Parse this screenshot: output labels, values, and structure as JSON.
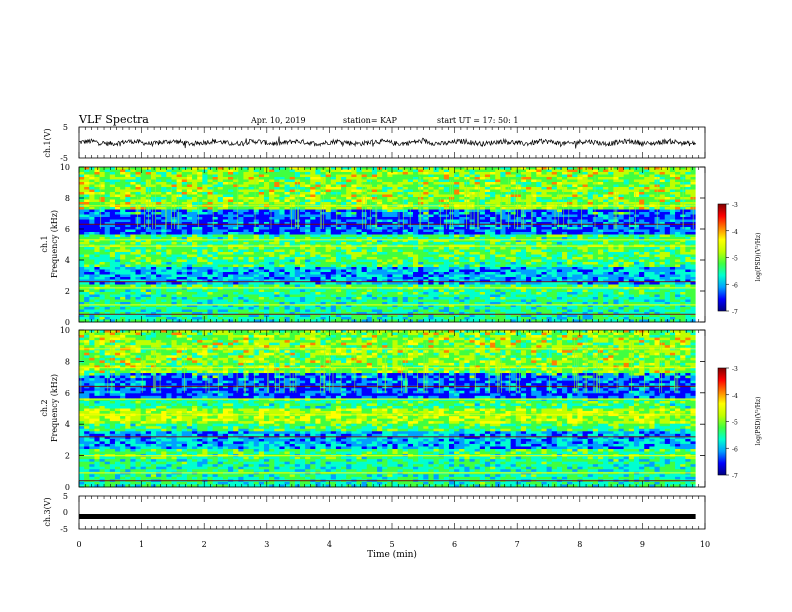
{
  "header": {
    "title": "VLF Spectra",
    "date": "Apr. 10, 2019",
    "station": "station= KAP",
    "start": "start  UT  =   17: 50: 1"
  },
  "chart_data": [
    {
      "type": "line",
      "ylabel": "ch.1(V)",
      "ylim": [
        -5,
        5
      ],
      "yticks": [
        "5",
        "-5"
      ],
      "xlim": [
        0,
        10
      ],
      "description_values": {
        "mean": 0,
        "amplitude": 1.5
      }
    },
    {
      "type": "heatmap",
      "ylabel_top": "ch.1",
      "ylabel": "Frequency (kHz)",
      "ylim": [
        0,
        10
      ],
      "yticks": [
        "0",
        "2",
        "4",
        "6",
        "8",
        "10"
      ],
      "xlim": [
        0,
        10
      ],
      "colorbar": {
        "label": "log(PSD)(V²/Hz)",
        "range": [
          -7,
          -3
        ],
        "ticks": [
          "-3",
          "-4",
          "-5",
          "-6",
          "-7"
        ]
      }
    },
    {
      "type": "heatmap",
      "ylabel_top": "ch.2",
      "ylabel": "Frequency (kHz)",
      "ylim": [
        0,
        10
      ],
      "yticks": [
        "0",
        "2",
        "4",
        "6",
        "8",
        "10"
      ],
      "xlim": [
        0,
        10
      ],
      "colorbar": {
        "label": "log(PSD)(V²/Hz)",
        "range": [
          -7,
          -3
        ],
        "ticks": [
          "-3",
          "-4",
          "-5",
          "-6",
          "-7"
        ]
      }
    },
    {
      "type": "line",
      "ylabel": "ch.3(V)",
      "ylim": [
        -5,
        5
      ],
      "yticks": [
        "5",
        "0",
        "-5"
      ],
      "xlim": [
        0,
        10
      ],
      "description_values": {
        "constant": -1.2
      }
    }
  ],
  "xaxis": {
    "label": "Time (min)",
    "ticks": [
      "0",
      "1",
      "2",
      "3",
      "4",
      "5",
      "6",
      "7",
      "8",
      "9",
      "10"
    ],
    "data_end": 9.85
  },
  "colors": {
    "cmap": [
      "#000080",
      "#0000ff",
      "#00a0ff",
      "#00ffd0",
      "#40ff40",
      "#c0ff00",
      "#ffff00",
      "#ff8000",
      "#ff0000",
      "#800000"
    ]
  }
}
